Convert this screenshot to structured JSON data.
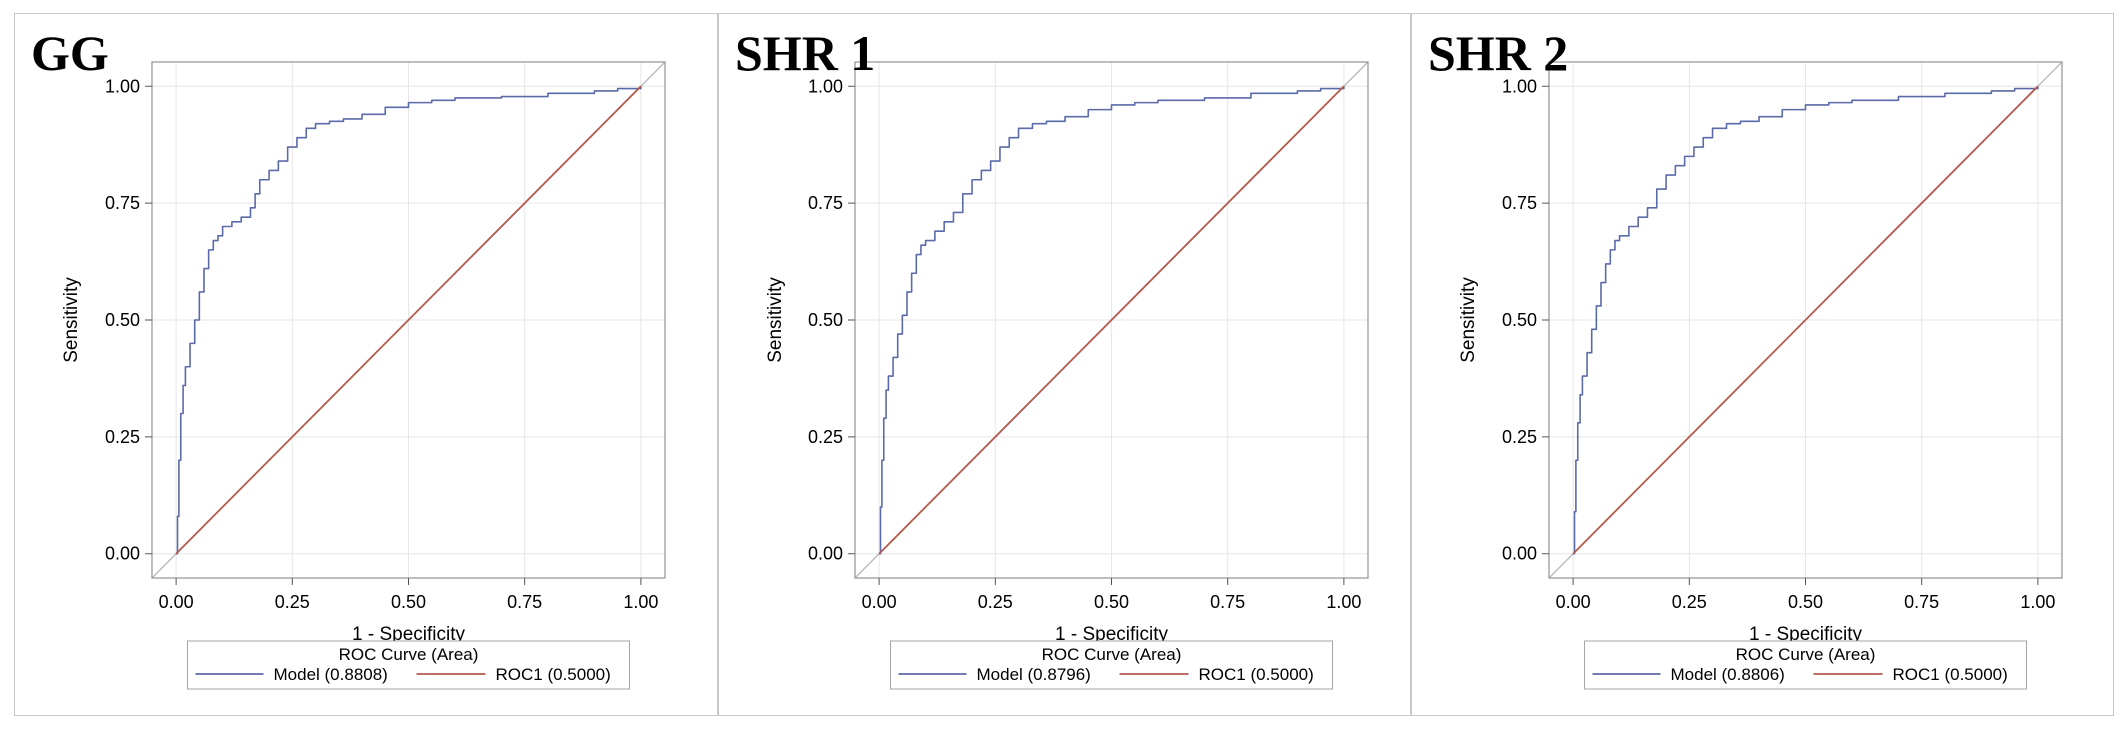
{
  "chart_data": [
    {
      "type": "line",
      "panel_label": "GG",
      "xlabel": "1 - Specificity",
      "ylabel": "Sensitivity",
      "xlim": [
        0,
        1
      ],
      "ylim": [
        0,
        1
      ],
      "xticks": [
        "0.00",
        "0.25",
        "0.50",
        "0.75",
        "1.00"
      ],
      "yticks": [
        "0.00",
        "0.25",
        "0.50",
        "0.75",
        "1.00"
      ],
      "grid": true,
      "legend_title": "ROC Curve (Area)",
      "legend_position": "bottom",
      "series": [
        {
          "name": "Model",
          "auc_label": "(0.8808)",
          "color": "#5b6aa8",
          "x": [
            0,
            0.003,
            0.006,
            0.01,
            0.015,
            0.02,
            0.03,
            0.04,
            0.05,
            0.06,
            0.07,
            0.08,
            0.09,
            0.1,
            0.12,
            0.14,
            0.16,
            0.17,
            0.18,
            0.2,
            0.22,
            0.24,
            0.26,
            0.28,
            0.3,
            0.33,
            0.36,
            0.4,
            0.45,
            0.5,
            0.55,
            0.6,
            0.7,
            0.8,
            0.9,
            0.95,
            1.0
          ],
          "y": [
            0,
            0.08,
            0.2,
            0.3,
            0.36,
            0.4,
            0.45,
            0.5,
            0.56,
            0.61,
            0.65,
            0.67,
            0.68,
            0.7,
            0.71,
            0.72,
            0.74,
            0.77,
            0.8,
            0.82,
            0.84,
            0.87,
            0.89,
            0.91,
            0.92,
            0.925,
            0.93,
            0.94,
            0.955,
            0.965,
            0.97,
            0.975,
            0.978,
            0.985,
            0.99,
            0.995,
            1.0
          ]
        },
        {
          "name": "ROC1",
          "auc_label": "(0.5000)",
          "color": "#b55a4e",
          "x": [
            0,
            1
          ],
          "y": [
            0,
            1
          ]
        }
      ]
    },
    {
      "type": "line",
      "panel_label": "SHR 1",
      "xlabel": "1 - Specificity",
      "ylabel": "Sensitivity",
      "xlim": [
        0,
        1
      ],
      "ylim": [
        0,
        1
      ],
      "xticks": [
        "0.00",
        "0.25",
        "0.50",
        "0.75",
        "1.00"
      ],
      "yticks": [
        "0.00",
        "0.25",
        "0.50",
        "0.75",
        "1.00"
      ],
      "grid": true,
      "legend_title": "ROC Curve (Area)",
      "legend_position": "bottom",
      "series": [
        {
          "name": "Model",
          "auc_label": "(0.8796)",
          "color": "#5b6aa8",
          "x": [
            0,
            0.003,
            0.006,
            0.01,
            0.015,
            0.02,
            0.03,
            0.04,
            0.05,
            0.06,
            0.07,
            0.08,
            0.09,
            0.1,
            0.12,
            0.14,
            0.16,
            0.18,
            0.2,
            0.22,
            0.24,
            0.26,
            0.28,
            0.3,
            0.33,
            0.36,
            0.4,
            0.45,
            0.5,
            0.55,
            0.6,
            0.7,
            0.8,
            0.9,
            0.95,
            1.0
          ],
          "y": [
            0,
            0.1,
            0.2,
            0.29,
            0.35,
            0.38,
            0.42,
            0.47,
            0.51,
            0.56,
            0.6,
            0.64,
            0.66,
            0.67,
            0.69,
            0.71,
            0.73,
            0.77,
            0.8,
            0.82,
            0.84,
            0.87,
            0.89,
            0.91,
            0.92,
            0.925,
            0.935,
            0.95,
            0.96,
            0.965,
            0.97,
            0.975,
            0.985,
            0.99,
            0.995,
            1.0
          ]
        },
        {
          "name": "ROC1",
          "auc_label": "(0.5000)",
          "color": "#b55a4e",
          "x": [
            0,
            1
          ],
          "y": [
            0,
            1
          ]
        }
      ]
    },
    {
      "type": "line",
      "panel_label": "SHR 2",
      "xlabel": "1 - Specificity",
      "ylabel": "Sensitivity",
      "xlim": [
        0,
        1
      ],
      "ylim": [
        0,
        1
      ],
      "xticks": [
        "0.00",
        "0.25",
        "0.50",
        "0.75",
        "1.00"
      ],
      "yticks": [
        "0.00",
        "0.25",
        "0.50",
        "0.75",
        "1.00"
      ],
      "grid": true,
      "legend_title": "ROC Curve (Area)",
      "legend_position": "bottom",
      "series": [
        {
          "name": "Model",
          "auc_label": "(0.8806)",
          "color": "#5b6aa8",
          "x": [
            0,
            0.003,
            0.006,
            0.01,
            0.015,
            0.02,
            0.03,
            0.04,
            0.05,
            0.06,
            0.07,
            0.08,
            0.09,
            0.1,
            0.12,
            0.14,
            0.16,
            0.18,
            0.2,
            0.22,
            0.24,
            0.26,
            0.28,
            0.3,
            0.33,
            0.36,
            0.4,
            0.45,
            0.5,
            0.55,
            0.6,
            0.7,
            0.8,
            0.9,
            0.95,
            1.0
          ],
          "y": [
            0,
            0.09,
            0.2,
            0.28,
            0.34,
            0.38,
            0.43,
            0.48,
            0.53,
            0.58,
            0.62,
            0.65,
            0.67,
            0.68,
            0.7,
            0.72,
            0.74,
            0.78,
            0.81,
            0.83,
            0.85,
            0.87,
            0.89,
            0.91,
            0.92,
            0.925,
            0.935,
            0.95,
            0.96,
            0.965,
            0.97,
            0.978,
            0.985,
            0.99,
            0.995,
            1.0
          ]
        },
        {
          "name": "ROC1",
          "auc_label": "(0.5000)",
          "color": "#b55a4e",
          "x": [
            0,
            1
          ],
          "y": [
            0,
            1
          ]
        }
      ]
    }
  ]
}
